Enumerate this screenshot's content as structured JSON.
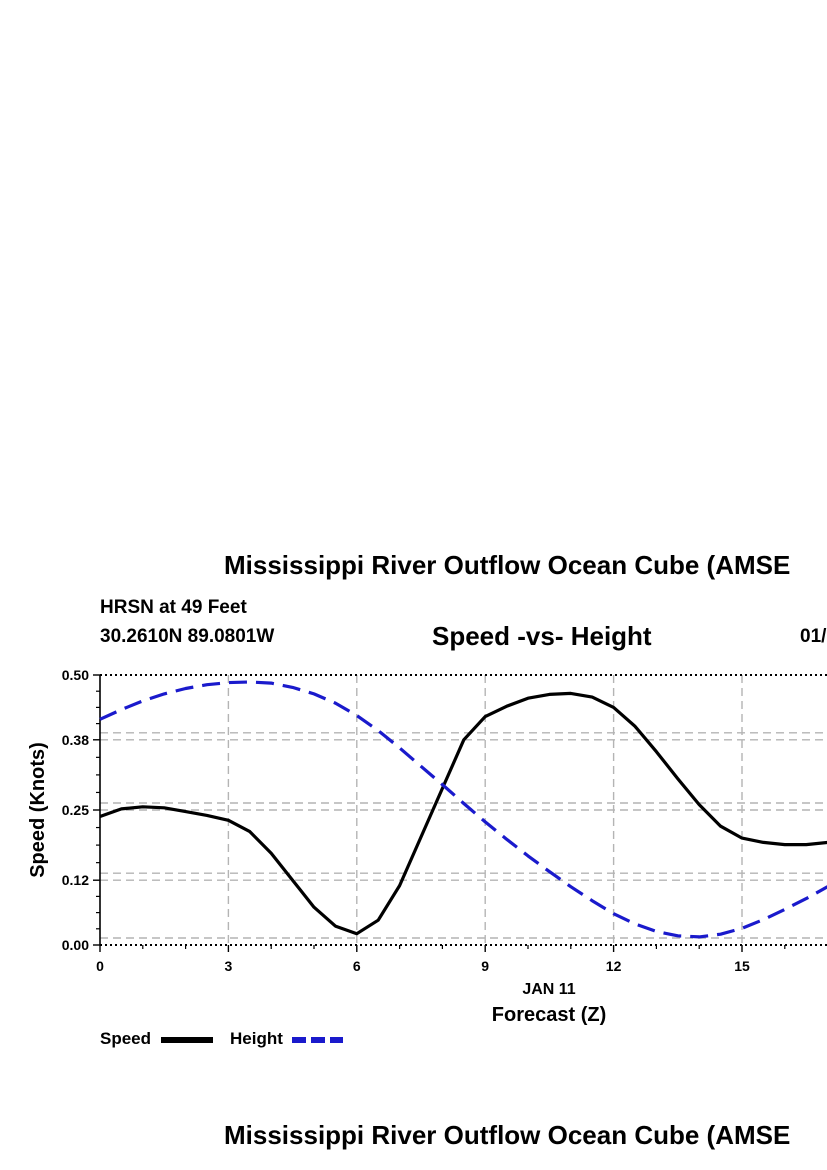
{
  "header": {
    "title": "Mississippi River Outflow Ocean Cube (AMSE",
    "station": "HRSN at 49 Feet",
    "coords": "30.2610N  89.0801W",
    "chart_title": "Speed -vs- Height",
    "date_fragment": "01/"
  },
  "legend": {
    "speed_label": "Speed",
    "height_label": "Height"
  },
  "footer": {
    "title": "Mississippi River Outflow Ocean Cube (AMSE"
  },
  "colors": {
    "speed": "#000000",
    "height": "#1a1acc",
    "grid": "#b4b4b4"
  },
  "chart_data": {
    "type": "line",
    "title": "Speed -vs- Height",
    "xlabel": "Forecast (Z)",
    "xlabel_date": "JAN 11",
    "ylabel": "Speed (Knots)",
    "xlim": [
      0,
      17
    ],
    "ylim": [
      0,
      0.5
    ],
    "xticks": [
      "0",
      "3",
      "6",
      "9",
      "12",
      "15"
    ],
    "yticks": [
      "0.00",
      "0.12",
      "0.25",
      "0.38",
      "0.50"
    ],
    "grid": true,
    "legend_position": "bottom-left",
    "series": [
      {
        "name": "Speed",
        "style": "solid",
        "x": [
          0,
          0.5,
          1,
          1.5,
          2,
          2.5,
          3,
          3.5,
          4,
          4.5,
          5,
          5.5,
          6,
          6.5,
          7,
          7.5,
          8,
          8.5,
          9,
          9.5,
          10,
          10.5,
          11,
          11.5,
          12,
          12.5,
          13,
          13.5,
          14,
          14.5,
          15,
          15.5,
          16,
          16.5,
          17
        ],
        "values": [
          0.238,
          0.252,
          0.256,
          0.254,
          0.247,
          0.24,
          0.231,
          0.21,
          0.17,
          0.12,
          0.07,
          0.035,
          0.021,
          0.046,
          0.11,
          0.2,
          0.29,
          0.38,
          0.423,
          0.442,
          0.457,
          0.464,
          0.466,
          0.459,
          0.44,
          0.405,
          0.358,
          0.308,
          0.26,
          0.22,
          0.198,
          0.19,
          0.186,
          0.186,
          0.19
        ]
      },
      {
        "name": "Height",
        "style": "dashed",
        "x": [
          0,
          0.5,
          1,
          1.5,
          2,
          2.5,
          3,
          3.5,
          4,
          4.5,
          5,
          5.5,
          6,
          6.5,
          7,
          7.5,
          8,
          8.5,
          9,
          9.5,
          10,
          10.5,
          11,
          11.5,
          12,
          12.5,
          13,
          13.5,
          14,
          14.5,
          15,
          15.5,
          16,
          16.5,
          17
        ],
        "values": [
          0.418,
          0.436,
          0.452,
          0.465,
          0.475,
          0.482,
          0.486,
          0.487,
          0.485,
          0.477,
          0.465,
          0.448,
          0.425,
          0.397,
          0.365,
          0.331,
          0.297,
          0.262,
          0.228,
          0.196,
          0.165,
          0.136,
          0.108,
          0.082,
          0.058,
          0.039,
          0.025,
          0.017,
          0.015,
          0.02,
          0.031,
          0.047,
          0.066,
          0.086,
          0.108
        ]
      }
    ]
  }
}
